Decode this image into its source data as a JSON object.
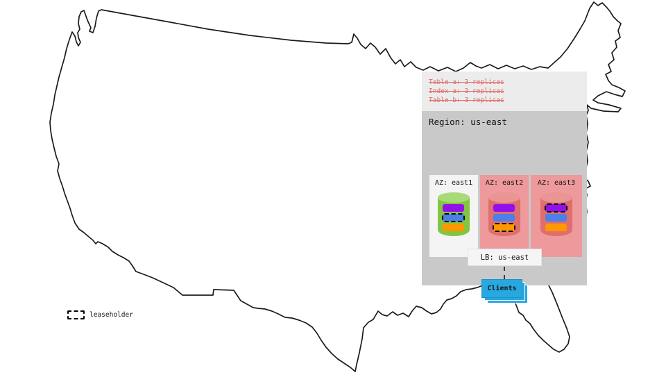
{
  "legend": {
    "label": "leaseholder"
  },
  "config_overlay": {
    "lines": [
      "Table a: 3 replicas",
      "Index a: 3 replicas",
      "Table b: 3 replicas"
    ]
  },
  "region": {
    "title": "Region: us-east",
    "azs": [
      {
        "label": "AZ: east1",
        "theme": "local",
        "cylinder": {
          "body": "#83c440",
          "top": "#a9da78"
        },
        "replicas": [
          {
            "color": "#9211ea",
            "leaseholder": false
          },
          {
            "color": "#4d80e6",
            "leaseholder": true
          },
          {
            "color": "#ff9800",
            "leaseholder": false
          }
        ]
      },
      {
        "label": "AZ: east2",
        "theme": "remote",
        "cylinder": {
          "body": "#e06e6e",
          "top": "#ea9494"
        },
        "replicas": [
          {
            "color": "#9211ea",
            "leaseholder": false
          },
          {
            "color": "#4d80e6",
            "leaseholder": false
          },
          {
            "color": "#ff9800",
            "leaseholder": true
          }
        ]
      },
      {
        "label": "AZ: east3",
        "theme": "remote",
        "cylinder": {
          "body": "#e06e6e",
          "top": "#ea9494"
        },
        "replicas": [
          {
            "color": "#9211ea",
            "leaseholder": true
          },
          {
            "color": "#4d80e6",
            "leaseholder": false
          },
          {
            "color": "#ff9800",
            "leaseholder": false
          }
        ]
      }
    ],
    "load_balancer": {
      "label": "LB: us-east"
    },
    "clients": {
      "label": "Clients"
    }
  },
  "colors": {
    "map_stroke": "#1b1b1b",
    "panel_header": "#ececec",
    "panel_body": "#c9c9c9",
    "az_local": "#f4f4f4",
    "az_remote": "#ee999b",
    "strike": "#e06c6c",
    "clients_blue": "#29a8e0"
  }
}
